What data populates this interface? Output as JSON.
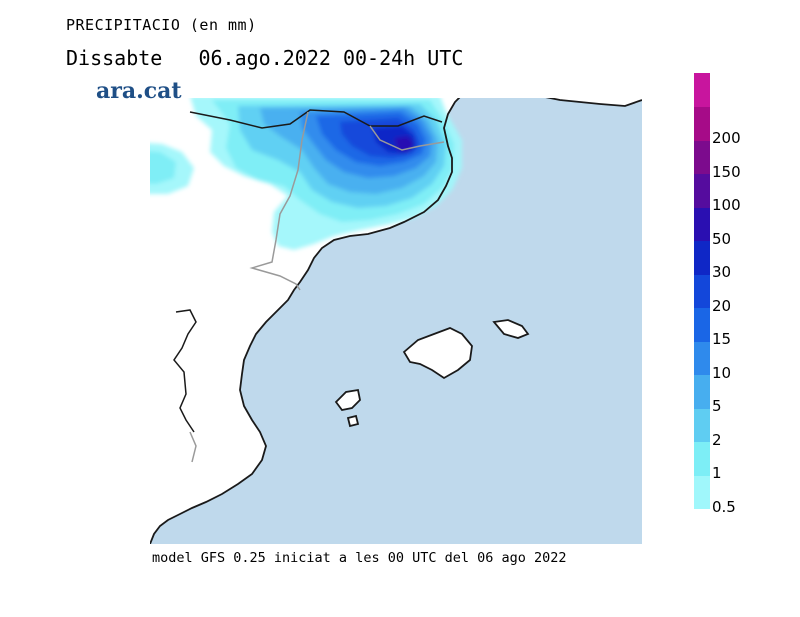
{
  "title": {
    "variable": "PRECIPITACIO (en mm)",
    "day": "Dissabte",
    "date": "06.ago.2022",
    "range": "00-24h UTC"
  },
  "logo": "ara.cat",
  "footer": "model GFS 0.25 iniciat a les 00 UTC del 06 ago 2022",
  "colors": {
    "sea": "#bfd9ec",
    "land": "#ffffff",
    "coast": "#1a1a1a",
    "border": "#9a9a9a"
  },
  "legend": {
    "levels": [
      "0.5",
      "1",
      "2",
      "5",
      "10",
      "15",
      "20",
      "30",
      "50",
      "100",
      "150",
      "200"
    ],
    "colors": [
      "#a0f7fb",
      "#7deef6",
      "#5fcdf2",
      "#47aeef",
      "#2f8aec",
      "#1a66e6",
      "#1347da",
      "#0f27c6",
      "#2a0fb1",
      "#550c9e",
      "#7c0b8d",
      "#a60b88",
      "#c8159e"
    ]
  }
}
